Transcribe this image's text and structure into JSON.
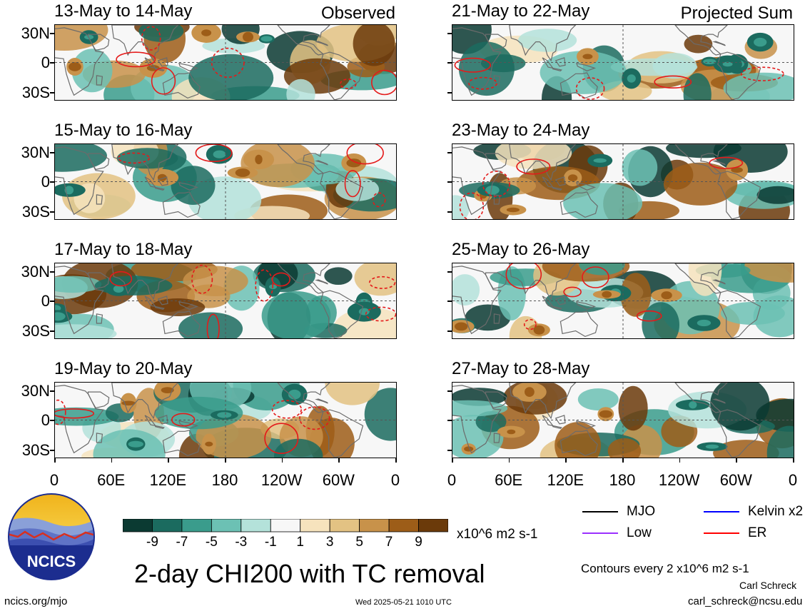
{
  "panels": [
    {
      "title": "13-May to 14-May",
      "tag": "Observed",
      "seed": 3
    },
    {
      "title": "21-May to 22-May",
      "tag": "Projected Sum",
      "seed": 11
    },
    {
      "title": "15-May to 16-May",
      "tag": "",
      "seed": 5
    },
    {
      "title": "23-May to 24-May",
      "tag": "",
      "seed": 13
    },
    {
      "title": "17-May to 18-May",
      "tag": "",
      "seed": 7
    },
    {
      "title": "25-May to 26-May",
      "tag": "",
      "seed": 17
    },
    {
      "title": "19-May to 20-May",
      "tag": "",
      "seed": 9
    },
    {
      "title": "27-May to 28-May",
      "tag": "",
      "seed": 19
    }
  ],
  "y_axis_labels": [
    "30N",
    "0",
    "30S"
  ],
  "x_axis_labels": [
    "0",
    "60E",
    "120E",
    "180",
    "120W",
    "60W",
    "0"
  ],
  "colorbar": {
    "colors": [
      "#0b3a32",
      "#1b6b5f",
      "#3a9c8c",
      "#6cc1b4",
      "#b4e2da",
      "#f7f7f7",
      "#f6e3bd",
      "#e3c283",
      "#c8924a",
      "#9d5d18",
      "#6b3a0a"
    ],
    "labels": [
      "-9",
      "-7",
      "-5",
      "-3",
      "-1",
      "1",
      "3",
      "5",
      "7",
      "9"
    ],
    "units": "x10^6 m2 s-1"
  },
  "legend": {
    "items": [
      {
        "label": "MJO",
        "color": "#000000"
      },
      {
        "label": "Kelvin x2",
        "color": "#0000ff"
      },
      {
        "label": "Low",
        "color": "#9b30ff"
      },
      {
        "label": "ER",
        "color": "#ff0000"
      }
    ],
    "contours_note": "Contours every 2 x10^6 m2 s-1"
  },
  "main_title": "2-day CHI200 with TC removal",
  "logo_text": "NCICS",
  "footer": {
    "left": "ncics.org/mjo",
    "center": "Wed 2025-05-21 1010 UTC",
    "author": "Carl Schreck",
    "email": "carl_schreck@ncsu.edu"
  }
}
